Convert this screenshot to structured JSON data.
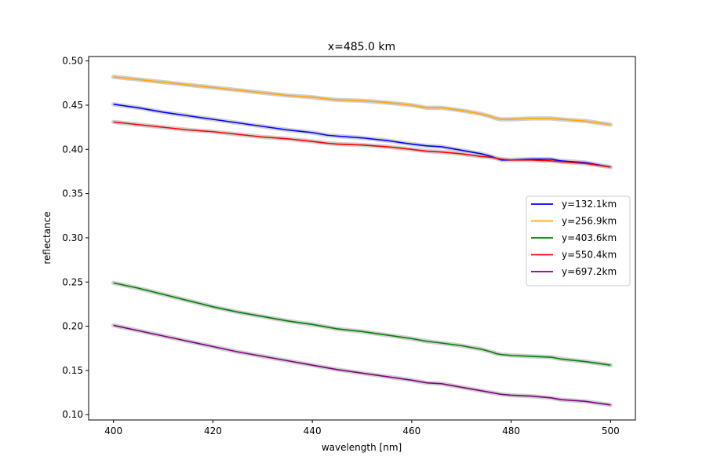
{
  "chart_data": {
    "type": "line",
    "title": "x=485.0 km",
    "xlabel": "wavelength [nm]",
    "ylabel": "reflectance",
    "xlim": [
      395,
      505
    ],
    "ylim": [
      0.094,
      0.505
    ],
    "xticks": [
      400,
      420,
      440,
      460,
      480,
      500
    ],
    "xtick_labels": [
      "400",
      "420",
      "440",
      "460",
      "480",
      "500"
    ],
    "yticks": [
      0.1,
      0.15,
      0.2,
      0.25,
      0.3,
      0.35,
      0.4,
      0.45,
      0.5
    ],
    "ytick_labels": [
      "0.10",
      "0.15",
      "0.20",
      "0.25",
      "0.30",
      "0.35",
      "0.40",
      "0.45",
      "0.50"
    ],
    "grid": false,
    "legend": "center-right",
    "band_color": "#c8c8c8",
    "x": [
      400,
      405,
      410,
      415,
      420,
      425,
      430,
      435,
      440,
      443,
      445,
      450,
      455,
      460,
      463,
      466,
      470,
      474,
      476,
      477,
      478,
      480,
      484,
      488,
      490,
      495,
      500
    ],
    "series": [
      {
        "name": "y=132.1km",
        "color": "#0000ff",
        "values": [
          0.451,
          0.447,
          0.442,
          0.438,
          0.434,
          0.43,
          0.426,
          0.422,
          0.419,
          0.416,
          0.415,
          0.413,
          0.41,
          0.406,
          0.404,
          0.403,
          0.399,
          0.395,
          0.392,
          0.39,
          0.388,
          0.388,
          0.389,
          0.389,
          0.387,
          0.385,
          0.38
        ]
      },
      {
        "name": "y=256.9km",
        "color": "#ffa500",
        "values": [
          0.482,
          0.479,
          0.476,
          0.473,
          0.47,
          0.467,
          0.464,
          0.461,
          0.459,
          0.457,
          0.456,
          0.455,
          0.453,
          0.45,
          0.447,
          0.447,
          0.444,
          0.44,
          0.437,
          0.435,
          0.434,
          0.434,
          0.435,
          0.435,
          0.434,
          0.432,
          0.428
        ]
      },
      {
        "name": "y=403.6km",
        "color": "#008000",
        "values": [
          0.249,
          0.243,
          0.236,
          0.229,
          0.222,
          0.216,
          0.211,
          0.206,
          0.202,
          0.199,
          0.197,
          0.194,
          0.19,
          0.186,
          0.183,
          0.181,
          0.178,
          0.174,
          0.171,
          0.169,
          0.168,
          0.167,
          0.166,
          0.165,
          0.163,
          0.16,
          0.156
        ]
      },
      {
        "name": "y=550.4km",
        "color": "#ff0000",
        "values": [
          0.431,
          0.428,
          0.425,
          0.422,
          0.42,
          0.417,
          0.414,
          0.412,
          0.409,
          0.407,
          0.406,
          0.405,
          0.403,
          0.4,
          0.398,
          0.397,
          0.395,
          0.392,
          0.391,
          0.39,
          0.389,
          0.388,
          0.388,
          0.387,
          0.386,
          0.384,
          0.38
        ]
      },
      {
        "name": "y=697.2km",
        "color": "#800080",
        "values": [
          0.201,
          0.195,
          0.189,
          0.183,
          0.177,
          0.171,
          0.166,
          0.161,
          0.156,
          0.153,
          0.151,
          0.147,
          0.143,
          0.139,
          0.136,
          0.135,
          0.131,
          0.127,
          0.125,
          0.124,
          0.123,
          0.122,
          0.121,
          0.119,
          0.117,
          0.115,
          0.111
        ]
      }
    ]
  }
}
